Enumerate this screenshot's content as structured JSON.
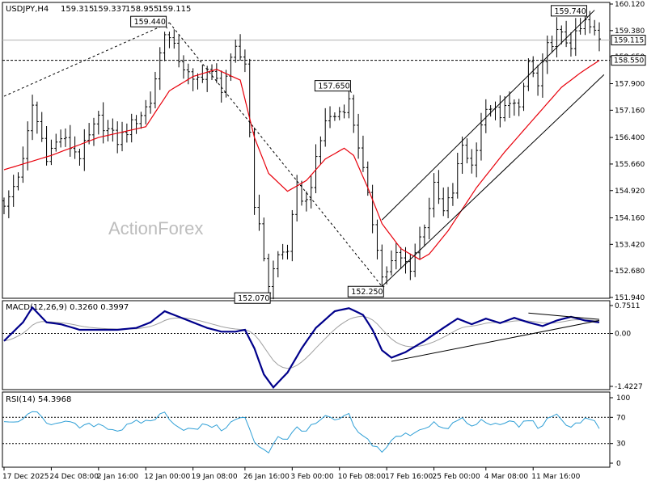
{
  "chart_data": {
    "type": "candlestick",
    "symbol": "USDJPY,H4",
    "header_values": [
      "159.315",
      "159.337",
      "158.955",
      "159.115"
    ],
    "watermark": "ActionForex",
    "price_panel": {
      "ylim": [
        151.94,
        160.12
      ],
      "ticks": [
        "160.120",
        "159.380",
        "158.650",
        "157.900",
        "157.160",
        "156.400",
        "155.660",
        "154.920",
        "154.160",
        "153.420",
        "152.680",
        "151.940"
      ],
      "current_price": "159.115",
      "level_label": "158.550",
      "level_value": 158.55,
      "annotations": [
        {
          "text": "159.440",
          "idx": 34,
          "price": 159.44
        },
        {
          "text": "152.070",
          "idx": 56,
          "price": 152.07
        },
        {
          "text": "157.650",
          "idx": 73,
          "price": 157.65
        },
        {
          "text": "152.250",
          "idx": 80,
          "price": 152.25
        },
        {
          "text": "159.740",
          "idx": 123,
          "price": 159.74
        }
      ],
      "trendlines": [
        {
          "from": [
            0,
            157.55
          ],
          "to": [
            35,
            159.6
          ],
          "style": "dashed"
        },
        {
          "from": [
            35,
            159.6
          ],
          "to": [
            80,
            152.25
          ],
          "style": "dashed"
        },
        {
          "from": [
            80,
            152.25
          ],
          "to": [
            127,
            158.15
          ],
          "style": "solid"
        },
        {
          "from": [
            80,
            154.1
          ],
          "to": [
            125,
            159.95
          ],
          "style": "solid"
        }
      ],
      "anchors": [
        [
          0,
          154.4
        ],
        [
          4,
          155.7
        ],
        [
          6,
          157.3
        ],
        [
          9,
          155.9
        ],
        [
          12,
          156.4
        ],
        [
          16,
          155.9
        ],
        [
          20,
          156.9
        ],
        [
          24,
          156.3
        ],
        [
          28,
          156.9
        ],
        [
          31,
          157.4
        ],
        [
          34,
          159.4
        ],
        [
          37,
          158.6
        ],
        [
          40,
          157.9
        ],
        [
          43,
          158.3
        ],
        [
          46,
          157.8
        ],
        [
          49,
          158.8
        ],
        [
          51,
          158.5
        ],
        [
          53,
          154.6
        ],
        [
          55,
          153.1
        ],
        [
          56,
          152.3
        ],
        [
          58,
          153.1
        ],
        [
          60,
          153.3
        ],
        [
          62,
          154.9
        ],
        [
          64,
          154.6
        ],
        [
          66,
          155.7
        ],
        [
          68,
          156.9
        ],
        [
          70,
          157.0
        ],
        [
          73,
          157.4
        ],
        [
          75,
          156.2
        ],
        [
          77,
          154.7
        ],
        [
          79,
          153.4
        ],
        [
          80,
          152.5
        ],
        [
          83,
          153.1
        ],
        [
          86,
          152.8
        ],
        [
          89,
          154.0
        ],
        [
          91,
          155.0
        ],
        [
          93,
          154.3
        ],
        [
          95,
          154.9
        ],
        [
          97,
          156.2
        ],
        [
          99,
          155.6
        ],
        [
          101,
          156.8
        ],
        [
          103,
          157.3
        ],
        [
          105,
          156.9
        ],
        [
          107,
          157.5
        ],
        [
          109,
          157.1
        ],
        [
          111,
          158.5
        ],
        [
          113,
          157.8
        ],
        [
          115,
          158.9
        ],
        [
          117,
          159.3
        ],
        [
          120,
          159.0
        ],
        [
          123,
          159.6
        ],
        [
          125,
          159.3
        ],
        [
          126,
          159.115
        ]
      ],
      "ma_anchors": [
        [
          0,
          155.5
        ],
        [
          10,
          155.9
        ],
        [
          20,
          156.4
        ],
        [
          30,
          156.7
        ],
        [
          35,
          157.7
        ],
        [
          40,
          158.1
        ],
        [
          45,
          158.3
        ],
        [
          50,
          158.0
        ],
        [
          53,
          156.4
        ],
        [
          56,
          155.4
        ],
        [
          60,
          154.9
        ],
        [
          64,
          155.2
        ],
        [
          68,
          155.8
        ],
        [
          72,
          156.1
        ],
        [
          74,
          155.9
        ],
        [
          77,
          155.0
        ],
        [
          80,
          154.0
        ],
        [
          84,
          153.3
        ],
        [
          88,
          153.0
        ],
        [
          90,
          153.15
        ],
        [
          94,
          153.8
        ],
        [
          100,
          155.0
        ],
        [
          106,
          156.0
        ],
        [
          112,
          156.9
        ],
        [
          118,
          157.8
        ],
        [
          122,
          158.2
        ],
        [
          126,
          158.55
        ]
      ]
    },
    "macd_panel": {
      "label": "MACD(12,26,9) 0.3260 0.3997",
      "ylim": [
        -1.4227,
        0.7511
      ],
      "ticks": [
        "0.7511",
        "0.00",
        "-1.4227"
      ],
      "anchors": [
        [
          0,
          -0.2
        ],
        [
          4,
          0.3
        ],
        [
          6,
          0.7
        ],
        [
          9,
          0.3
        ],
        [
          12,
          0.25
        ],
        [
          16,
          0.1
        ],
        [
          20,
          0.1
        ],
        [
          24,
          0.1
        ],
        [
          28,
          0.15
        ],
        [
          31,
          0.3
        ],
        [
          34,
          0.6
        ],
        [
          37,
          0.45
        ],
        [
          40,
          0.3
        ],
        [
          43,
          0.15
        ],
        [
          46,
          0.05
        ],
        [
          49,
          0.05
        ],
        [
          51,
          0.1
        ],
        [
          53,
          -0.4
        ],
        [
          55,
          -1.1
        ],
        [
          57,
          -1.45
        ],
        [
          60,
          -1.05
        ],
        [
          63,
          -0.4
        ],
        [
          66,
          0.15
        ],
        [
          70,
          0.6
        ],
        [
          73,
          0.68
        ],
        [
          76,
          0.5
        ],
        [
          78,
          0.1
        ],
        [
          80,
          -0.45
        ],
        [
          82,
          -0.65
        ],
        [
          85,
          -0.5
        ],
        [
          89,
          -0.2
        ],
        [
          93,
          0.15
        ],
        [
          96,
          0.4
        ],
        [
          99,
          0.25
        ],
        [
          102,
          0.4
        ],
        [
          105,
          0.28
        ],
        [
          108,
          0.42
        ],
        [
          111,
          0.3
        ],
        [
          114,
          0.2
        ],
        [
          117,
          0.35
        ],
        [
          120,
          0.45
        ],
        [
          123,
          0.35
        ],
        [
          126,
          0.3
        ]
      ],
      "trendlines": [
        {
          "from": [
            82,
            -0.75
          ],
          "to": [
            126,
            0.35
          ]
        },
        {
          "from": [
            111,
            0.55
          ],
          "to": [
            126,
            0.38
          ]
        }
      ]
    },
    "rsi_panel": {
      "label": "RSI(14) 54.3968",
      "ylim": [
        0,
        100
      ],
      "ticks": [
        "100",
        "70",
        "30",
        "0"
      ],
      "levels": [
        70,
        30
      ],
      "anchors": [
        [
          0,
          60
        ],
        [
          4,
          65
        ],
        [
          6,
          82
        ],
        [
          9,
          60
        ],
        [
          12,
          65
        ],
        [
          16,
          55
        ],
        [
          20,
          60
        ],
        [
          24,
          50
        ],
        [
          28,
          62
        ],
        [
          31,
          65
        ],
        [
          34,
          77
        ],
        [
          37,
          55
        ],
        [
          40,
          50
        ],
        [
          43,
          60
        ],
        [
          46,
          52
        ],
        [
          49,
          66
        ],
        [
          51,
          70
        ],
        [
          53,
          30
        ],
        [
          55,
          22
        ],
        [
          56,
          18
        ],
        [
          58,
          42
        ],
        [
          60,
          35
        ],
        [
          62,
          55
        ],
        [
          64,
          50
        ],
        [
          66,
          60
        ],
        [
          68,
          70
        ],
        [
          70,
          65
        ],
        [
          73,
          72
        ],
        [
          75,
          45
        ],
        [
          77,
          35
        ],
        [
          79,
          24
        ],
        [
          80,
          18
        ],
        [
          83,
          40
        ],
        [
          86,
          45
        ],
        [
          89,
          55
        ],
        [
          91,
          62
        ],
        [
          93,
          50
        ],
        [
          95,
          60
        ],
        [
          97,
          68
        ],
        [
          99,
          55
        ],
        [
          101,
          65
        ],
        [
          103,
          62
        ],
        [
          105,
          55
        ],
        [
          107,
          66
        ],
        [
          109,
          56
        ],
        [
          111,
          68
        ],
        [
          113,
          55
        ],
        [
          115,
          65
        ],
        [
          117,
          72
        ],
        [
          120,
          56
        ],
        [
          123,
          68
        ],
        [
          125,
          62
        ],
        [
          126,
          54
        ]
      ]
    },
    "x_axis": {
      "labels": [
        "17 Dec 2025",
        "24 Dec 08:00",
        "2 Jan 16:00",
        "12 Jan 00:00",
        "19 Jan 08:00",
        "26 Jan 16:00",
        "3 Feb 00:00",
        "10 Feb 08:00",
        "17 Feb 16:00",
        "25 Feb 00:00",
        "4 Mar 08:00",
        "11 Mar 16:00"
      ],
      "label_idx": [
        0,
        10,
        20,
        30,
        40,
        51,
        61,
        71,
        81,
        91,
        102,
        112
      ],
      "count": 127
    },
    "colors": {
      "bars": "#000000",
      "ma": "#e8000b",
      "macd_line": "#00008b",
      "macd_signal": "#a0a0a0",
      "rsi": "#2f9fd6",
      "annotation_text": "#1a1a9c"
    }
  }
}
